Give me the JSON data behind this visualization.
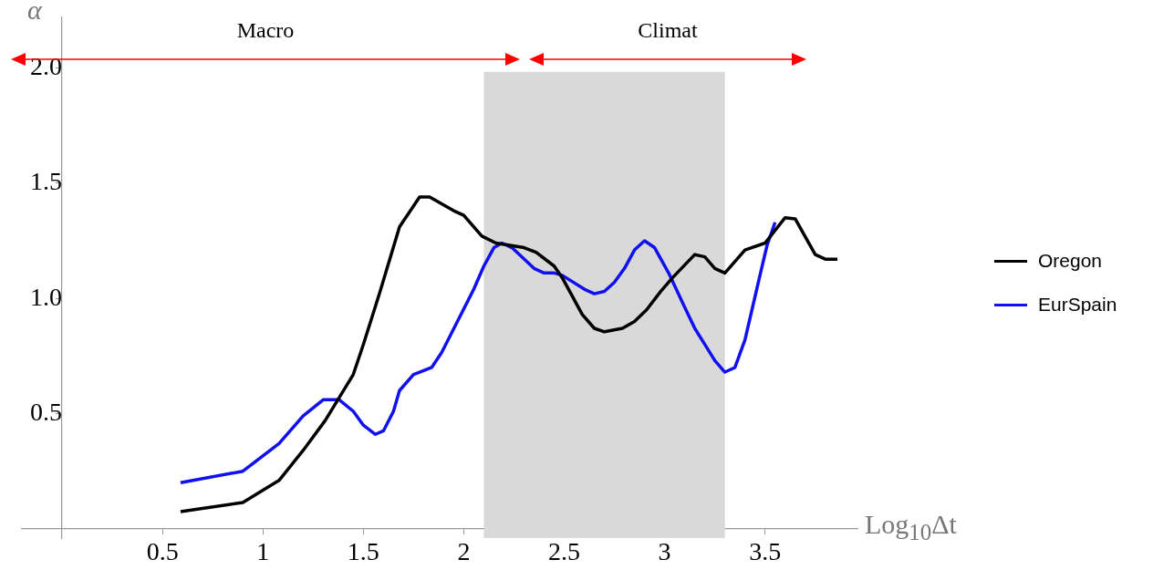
{
  "chart_data": {
    "type": "line",
    "xlabel": "Log$_{10}$Δt",
    "ylabel": "α",
    "xlim": [
      -0.2,
      3.96
    ],
    "ylim": [
      -0.04,
      2.22
    ],
    "xticks": [
      0.5,
      1,
      1.5,
      2,
      2.5,
      3,
      3.5
    ],
    "yticks": [
      {
        "value": 0.5,
        "label": "0.5"
      },
      {
        "value": 1,
        "label": "1.0"
      },
      {
        "value": 1.5,
        "label": "1.5"
      },
      {
        "value": 2,
        "label": "2.0"
      }
    ],
    "grid": false,
    "legend": "right",
    "marker": "none",
    "line_style": "solid",
    "bands": [
      {
        "axis": "x",
        "from": 2.1,
        "to": 3.3,
        "color": "#d9d9d9"
      }
    ],
    "annotations": [
      "Macro",
      "Climat"
    ],
    "series": [
      {
        "name": "Oregon",
        "color": "#000000",
        "x": [
          0.59,
          0.9,
          1.08,
          1.2,
          1.31,
          1.45,
          1.5,
          1.58,
          1.68,
          1.78,
          1.83,
          1.95,
          2.0,
          2.09,
          2.16,
          2.3,
          2.36,
          2.45,
          2.49,
          2.59,
          2.65,
          2.7,
          2.79,
          2.85,
          2.91,
          2.98,
          3.04,
          3.15,
          3.2,
          3.25,
          3.3,
          3.4,
          3.5,
          3.6,
          3.65,
          3.75,
          3.8,
          3.86
        ],
        "values": [
          0.075,
          0.114,
          0.21,
          0.34,
          0.47,
          0.67,
          0.8,
          1.02,
          1.31,
          1.44,
          1.44,
          1.38,
          1.36,
          1.27,
          1.24,
          1.22,
          1.2,
          1.14,
          1.09,
          0.93,
          0.87,
          0.855,
          0.87,
          0.9,
          0.95,
          1.03,
          1.09,
          1.19,
          1.18,
          1.13,
          1.11,
          1.21,
          1.24,
          1.35,
          1.345,
          1.19,
          1.17,
          1.17
        ]
      },
      {
        "name": "EurSpain",
        "color": "#1010f0",
        "x": [
          0.59,
          0.9,
          1.08,
          1.2,
          1.3,
          1.38,
          1.45,
          1.5,
          1.56,
          1.6,
          1.65,
          1.68,
          1.75,
          1.78,
          1.84,
          1.89,
          2.05,
          2.1,
          2.15,
          2.19,
          2.24,
          2.35,
          2.4,
          2.45,
          2.49,
          2.6,
          2.65,
          2.7,
          2.75,
          2.8,
          2.85,
          2.9,
          2.95,
          3.02,
          3.09,
          3.15,
          3.2,
          3.25,
          3.3,
          3.35,
          3.4,
          3.44,
          3.48,
          3.51,
          3.55
        ],
        "values": [
          0.2,
          0.25,
          0.37,
          0.49,
          0.56,
          0.56,
          0.51,
          0.45,
          0.41,
          0.425,
          0.51,
          0.6,
          0.67,
          0.68,
          0.7,
          0.765,
          1.04,
          1.14,
          1.22,
          1.24,
          1.22,
          1.13,
          1.11,
          1.11,
          1.1,
          1.04,
          1.02,
          1.03,
          1.07,
          1.13,
          1.21,
          1.25,
          1.22,
          1.11,
          0.98,
          0.87,
          0.8,
          0.73,
          0.68,
          0.7,
          0.82,
          0.97,
          1.12,
          1.23,
          1.33
        ]
      }
    ]
  }
}
